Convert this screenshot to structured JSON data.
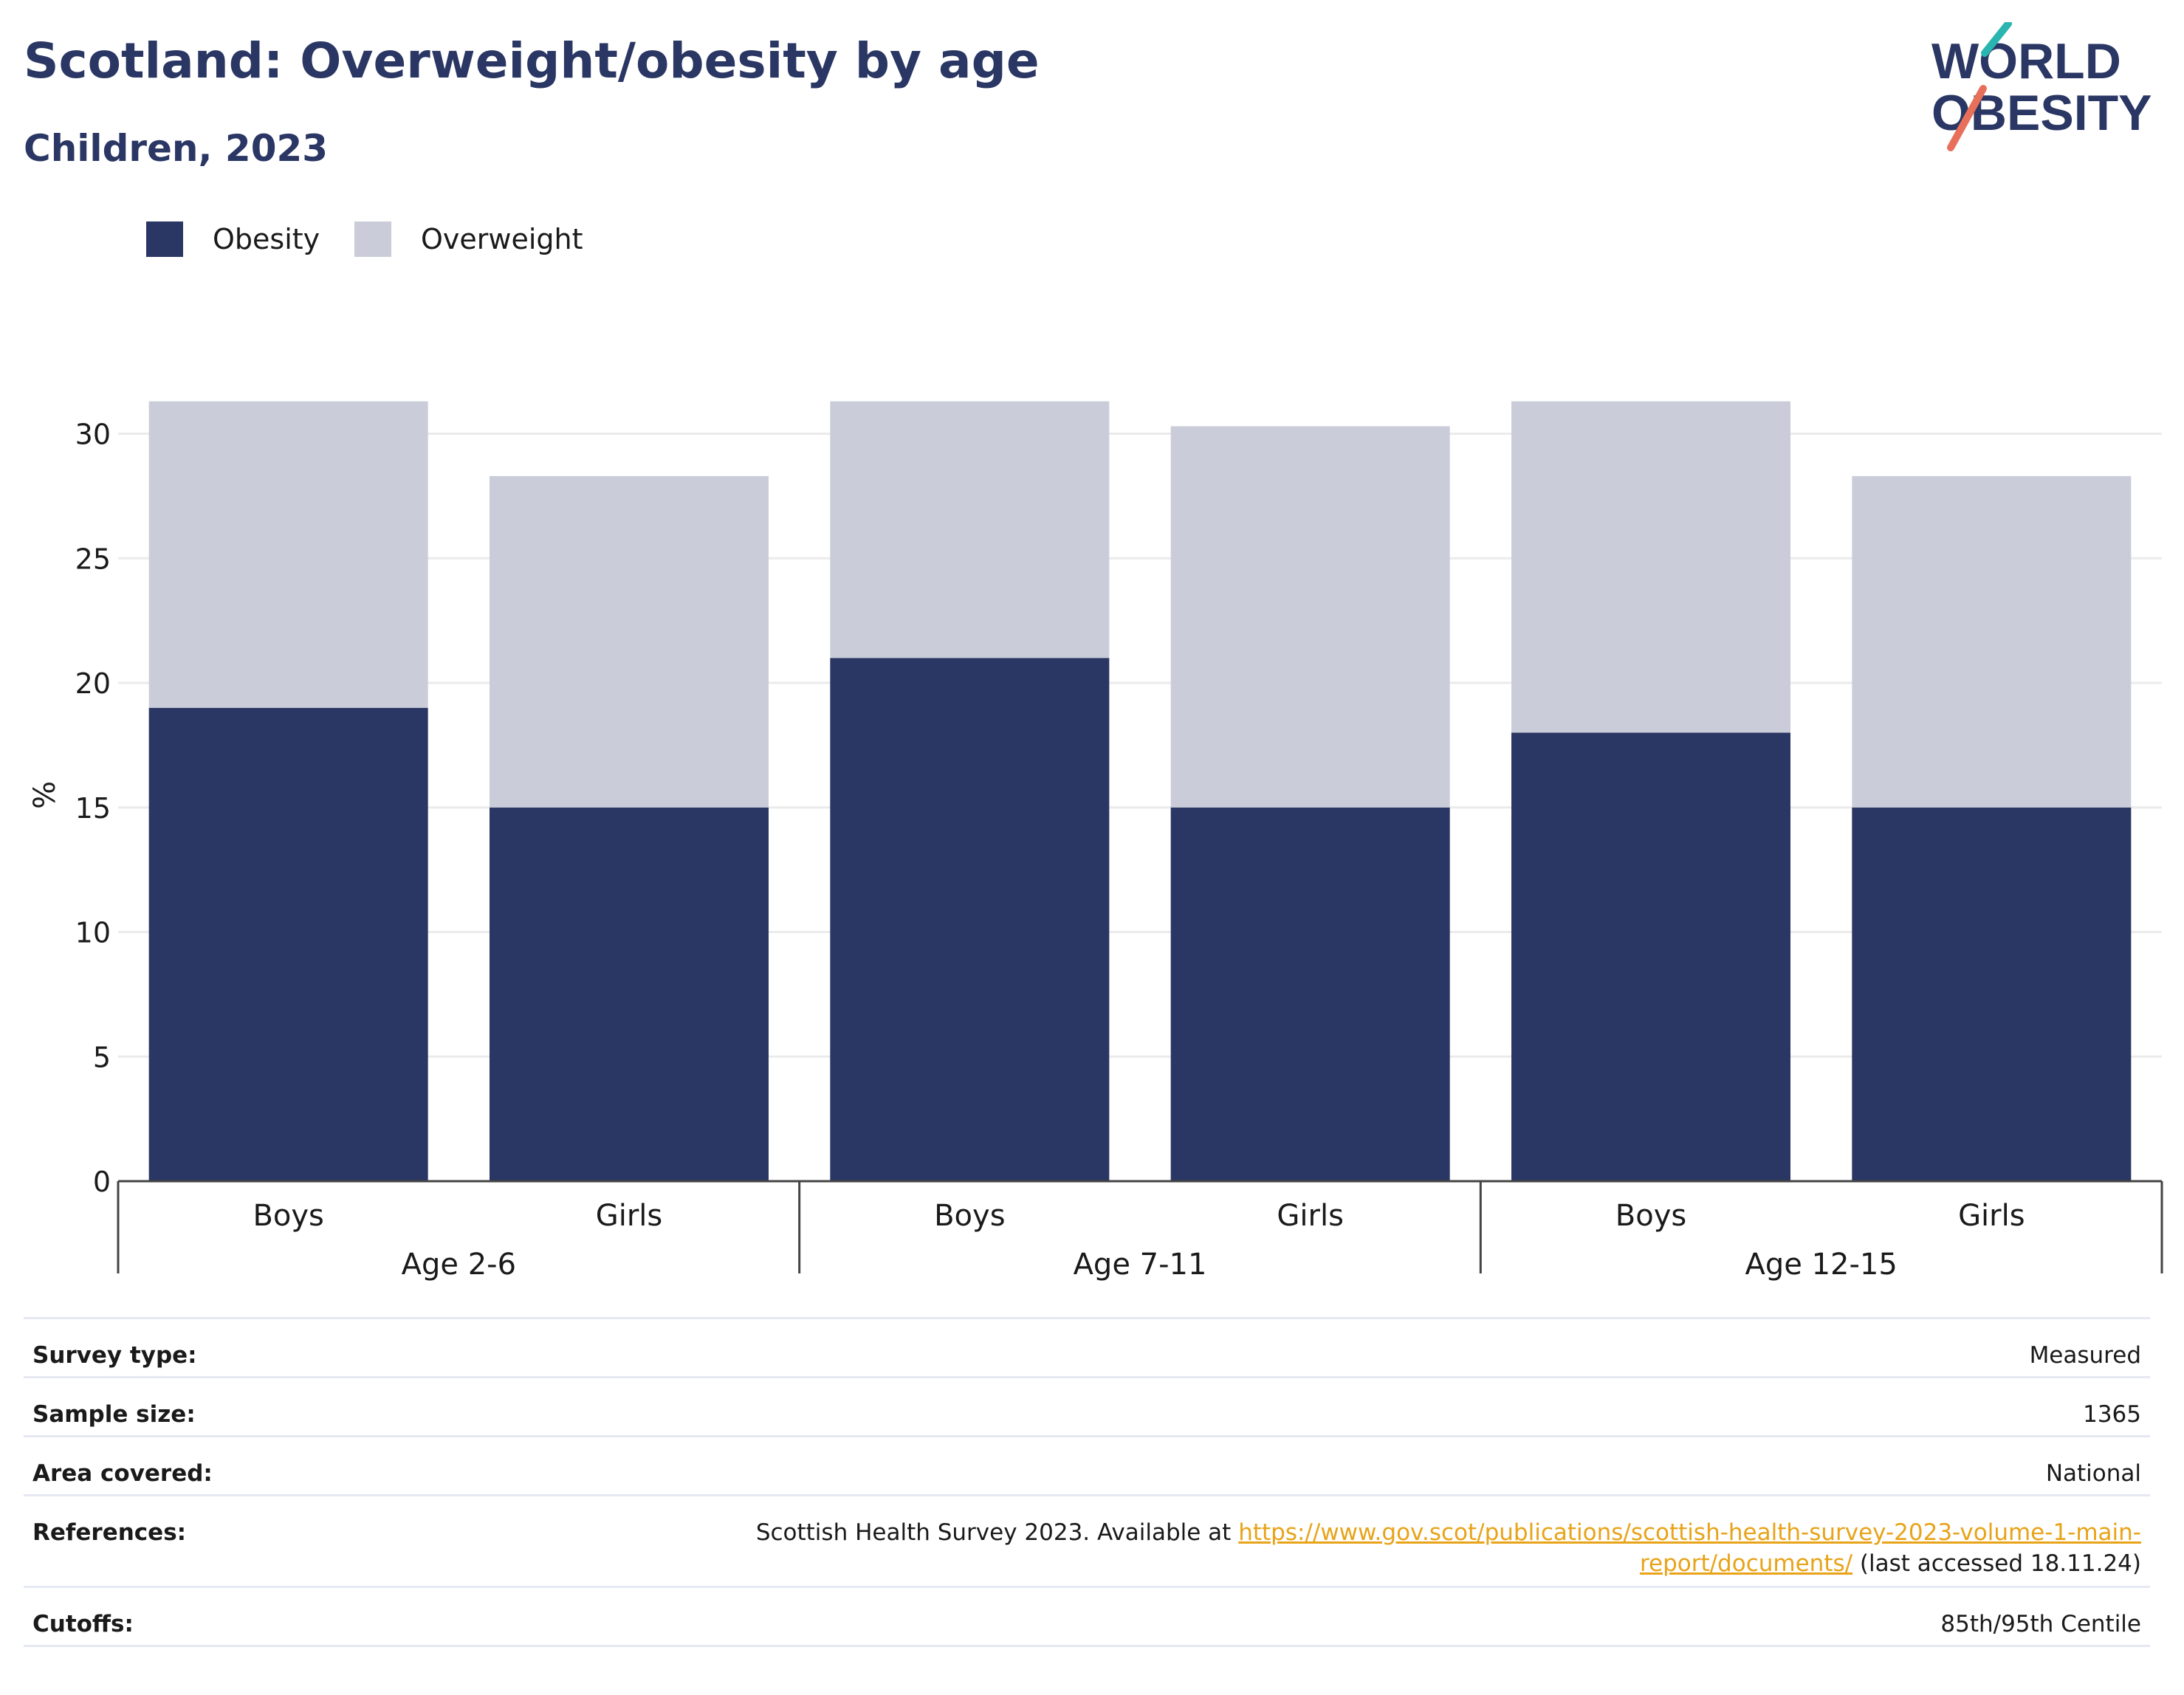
{
  "header": {
    "title": "Scotland: Overweight/obesity by age",
    "subtitle": "Children, 2023"
  },
  "logo": {
    "line1": "WORLD",
    "line2": "OBESITY",
    "accent_colors": [
      "#2ab5b0",
      "#e8705a"
    ]
  },
  "colors": {
    "obesity": "#2a3663",
    "overweight": "#cacdd9",
    "title": "#2a3663",
    "link": "#e8a318"
  },
  "chart_data": {
    "type": "bar",
    "stacked": true,
    "ylabel": "%",
    "ylim": [
      0,
      31
    ],
    "yticks": [
      0,
      5,
      10,
      15,
      20,
      25,
      30
    ],
    "grid": true,
    "legend_position": "top-left",
    "groups": [
      "Age 2-6",
      "Age 7-11",
      "Age 12-15"
    ],
    "categories": [
      "Boys",
      "Girls",
      "Boys",
      "Girls",
      "Boys",
      "Girls"
    ],
    "series": [
      {
        "name": "Obesity",
        "values": [
          19,
          15,
          21,
          15,
          18,
          15
        ]
      },
      {
        "name": "Overweight",
        "values": [
          12.3,
          13.3,
          10.3,
          15.3,
          13.3,
          13.3
        ]
      }
    ]
  },
  "details": [
    {
      "label": "Survey type:",
      "value": "Measured"
    },
    {
      "label": "Sample size:",
      "value": "1365"
    },
    {
      "label": "Area covered:",
      "value": "National"
    },
    {
      "label": "References:",
      "value_prefix": "Scottish Health Survey 2023. Available at ",
      "link_part1": "https://www.gov.scot/publications/scottish-health-survey-2023-volume-1-main-",
      "link_part2": "report/documents/",
      "value_suffix": " (last accessed 18.11.24)"
    },
    {
      "label": "Cutoffs:",
      "value": "85th/95th Centile"
    }
  ]
}
